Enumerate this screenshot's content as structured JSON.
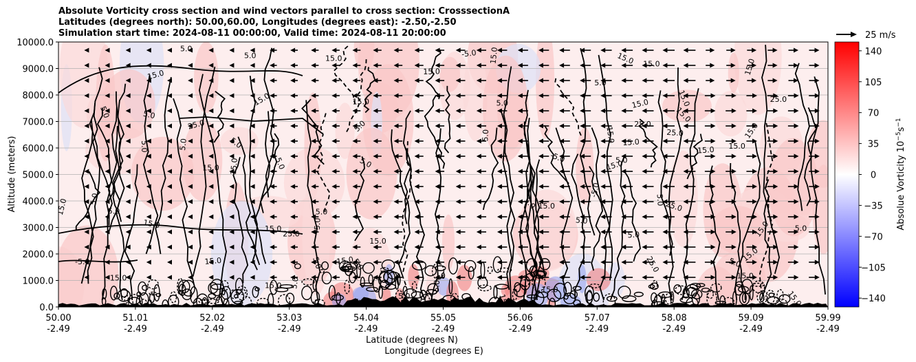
{
  "titles": {
    "line1": "Absolute Vorticity cross section and wind vectors parallel to cross section: CrosssectionA",
    "line2": "Latitudes (degrees north): 50.00,60.00, Longitudes (degrees east): -2.50,-2.50",
    "line3": "Simulation start time: 2024-08-11 00:00:00, Valid time: 2024-08-11 20:00:00"
  },
  "quiver_key": "25 m/s",
  "chart_data": {
    "type": "heatmap",
    "title": "Absolute Vorticity cross section and wind vectors parallel to cross section: CrosssectionA",
    "ylabel": "Altitude (meters)",
    "xlabel_lat": "Latitude (degrees N)",
    "xlabel_lon": "Longitude (degrees E)",
    "ylim": [
      0,
      10000
    ],
    "yticks": [
      "0.0",
      "1000.0",
      "2000.0",
      "3000.0",
      "4000.0",
      "5000.0",
      "6000.0",
      "7000.0",
      "8000.0",
      "9000.0",
      "10000.0"
    ],
    "xticks_lat": [
      "50.00",
      "51.01",
      "52.02",
      "53.03",
      "54.04",
      "55.05",
      "56.06",
      "57.07",
      "58.08",
      "59.09",
      "59.99"
    ],
    "xticks_lon": [
      "-2.49",
      "-2.49",
      "-2.49",
      "-2.49",
      "-2.49",
      "-2.49",
      "-2.49",
      "-2.49",
      "-2.49",
      "-2.49",
      "-2.49"
    ],
    "grid": "horizontal",
    "colorbar": {
      "label": "Absolue Vorticity 10$^{-5}$s$^{-1}$",
      "label_main": "Absolue Vorticity 10",
      "label_exp1": "−5",
      "label_s": "s",
      "label_exp2": "−1",
      "min": -150,
      "max": 150,
      "ticks": [
        "140",
        "105",
        "70",
        "35",
        "0",
        "−35",
        "−70",
        "−105",
        "−140"
      ],
      "tick_values": [
        140,
        105,
        70,
        35,
        0,
        -35,
        -70,
        -105,
        -140
      ],
      "colormap": "bwr",
      "color_low": "#0000ff",
      "color_mid": "#ffffff",
      "color_high": "#ff0000"
    },
    "contour_labels": [
      "5.0",
      "15.0",
      "25.0",
      "-5.0",
      "5.0",
      "15.0",
      "5.0",
      "15.0",
      "15.0",
      "5.0",
      "5.0",
      "15.0",
      "5.0",
      "15.0",
      "5.0",
      "15.0",
      "25.0",
      "5.0",
      "15.0",
      "15.0",
      "5.0",
      "15.0",
      "15.0"
    ],
    "wind": "vectors pointing mostly toward decreasing latitude aloft, toward increasing latitude at right"
  }
}
